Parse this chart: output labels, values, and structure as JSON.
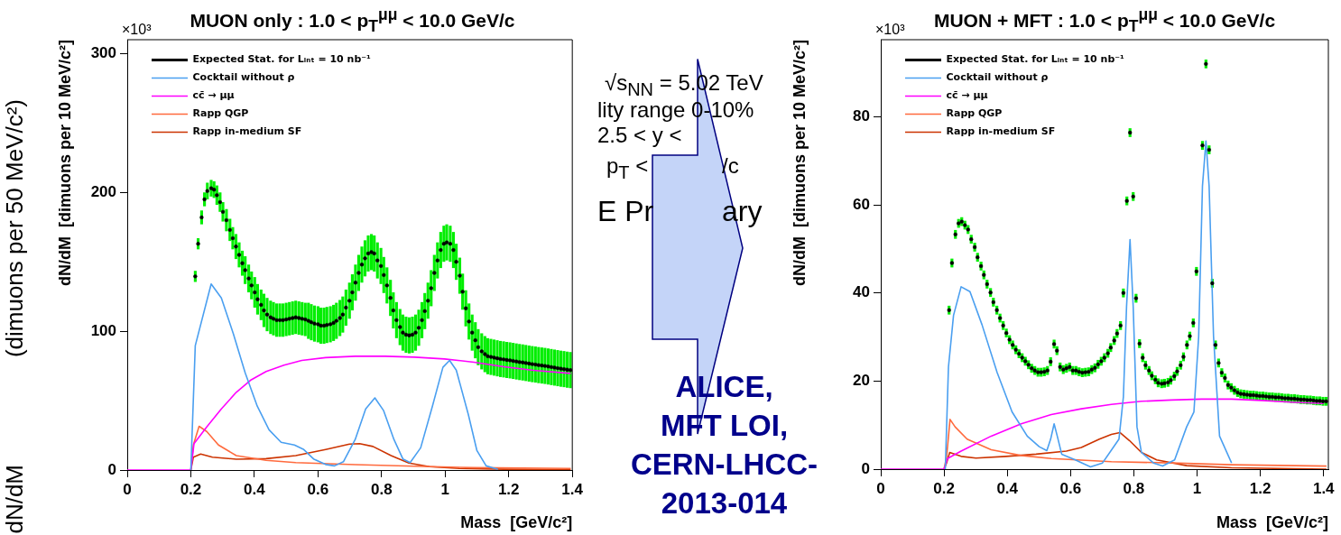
{
  "chart_data": [
    {
      "type": "line",
      "title": "MUON only : 1.0 < p$_{T}$$^{μμ}$ < 10.0 GeV/c",
      "xlabel": "Mass  [GeV/c²]",
      "ylabel": "dN/dM  [dimuons per 10 MeV/c²]",
      "xlim": [
        0,
        1.4
      ],
      "xticks": [
        0,
        0.2,
        0.4,
        0.6,
        0.8,
        1,
        1.2,
        1.4
      ],
      "ylim": [
        0,
        310
      ],
      "yticks": [
        0,
        100,
        200,
        300
      ],
      "legend": "top left",
      "annotations": [
        "×10³"
      ],
      "series": [
        {
          "name": "Expected Stat. for Lᵢₙₜ = 10 nb⁻¹",
          "type": "scatter",
          "marker": "circle",
          "color": "#000000",
          "x": [
            0.214,
            0.223,
            0.234,
            0.243,
            0.252,
            0.264,
            0.273,
            0.282,
            0.292,
            0.301,
            0.312,
            0.323,
            0.332,
            0.342,
            0.352,
            0.362,
            0.371,
            0.382,
            0.391,
            0.401,
            0.41,
            0.421,
            0.43,
            0.44,
            0.451,
            0.46,
            0.47,
            0.48,
            0.49,
            0.5,
            0.51,
            0.52,
            0.53,
            0.54,
            0.55,
            0.56,
            0.57,
            0.579,
            0.589,
            0.6,
            0.609,
            0.619,
            0.628,
            0.639,
            0.649,
            0.658,
            0.669,
            0.678,
            0.688,
            0.699,
            0.708,
            0.718,
            0.728,
            0.738,
            0.748,
            0.758,
            0.768,
            0.777,
            0.787,
            0.798,
            0.807,
            0.817,
            0.828,
            0.837,
            0.847,
            0.858,
            0.867,
            0.877,
            0.887,
            0.897,
            0.907,
            0.917,
            0.927,
            0.936,
            0.946,
            0.956,
            0.966,
            0.976,
            0.986,
            0.996,
            1.005,
            1.016,
            1.026,
            1.035,
            1.046,
            1.055,
            1.065,
            1.075,
            1.085,
            1.095,
            1.104,
            1.115,
            1.125,
            1.134,
            1.144,
            1.154,
            1.164,
            1.174,
            1.184,
            1.194,
            1.204,
            1.214,
            1.224,
            1.234,
            1.244,
            1.254,
            1.264,
            1.274,
            1.284,
            1.294,
            1.304,
            1.314,
            1.324,
            1.334,
            1.344,
            1.354,
            1.364,
            1.374,
            1.384,
            1.394
          ],
          "values": [
            139.5,
            163,
            182,
            195,
            201,
            203,
            202,
            198,
            193,
            186,
            180,
            173,
            167,
            161,
            155,
            149,
            144,
            138,
            133,
            128,
            123,
            119,
            115,
            112,
            110,
            109,
            108,
            108,
            108,
            108.5,
            109,
            109.5,
            110,
            109.5,
            109,
            108.5,
            107.5,
            106.5,
            105.5,
            105,
            104,
            104,
            104.5,
            105,
            106,
            107.5,
            109.5,
            112,
            117,
            122,
            128,
            135,
            142,
            148,
            152.5,
            156,
            157,
            156,
            151,
            147,
            140.5,
            133,
            124,
            115,
            108,
            103,
            99,
            97.5,
            97,
            97.5,
            99,
            102.5,
            108,
            114.5,
            122,
            131,
            142,
            151,
            158.5,
            163,
            164,
            163,
            158.5,
            150,
            140,
            128.5,
            116.5,
            107,
            99,
            93.5,
            88.5,
            85.5,
            83.5,
            82,
            81.5,
            81,
            80.5,
            80,
            79.7,
            79.3,
            79,
            78.6,
            78.2,
            77.8,
            77.5,
            77.1,
            76.7,
            76.3,
            76,
            75.6,
            75.3,
            75,
            74.6,
            74.2,
            73.8,
            73.4,
            73,
            72.7,
            72.3,
            72
          ],
          "errors": [
            4,
            4,
            5,
            5,
            6,
            6,
            6,
            7,
            7,
            7,
            8,
            8,
            8,
            9,
            9,
            9,
            10,
            10,
            10,
            11,
            11,
            11,
            12,
            12,
            12,
            12,
            12,
            12,
            12,
            12,
            12,
            12,
            12,
            12,
            12,
            12,
            13,
            13,
            13,
            13,
            13,
            13,
            13,
            13,
            13,
            13,
            13,
            13,
            13,
            13,
            13,
            13,
            13,
            13,
            13,
            13,
            13,
            13,
            13,
            13,
            13,
            13,
            13,
            13,
            13,
            13,
            13,
            13,
            13,
            13,
            13,
            13,
            13,
            13,
            13,
            13,
            13,
            13,
            13,
            13,
            13,
            13,
            13,
            13,
            13,
            13,
            13,
            13,
            13,
            13,
            13,
            13,
            13,
            13,
            13,
            13,
            13,
            13,
            13,
            13,
            13,
            13,
            13,
            13,
            13,
            13,
            13,
            13,
            13,
            13,
            13,
            13,
            13,
            13,
            13,
            13,
            13,
            13,
            13,
            13
          ]
        },
        {
          "name": "Cocktail without ρ",
          "type": "line",
          "color": "#4a9ff0",
          "x": [
            0.2,
            0.214,
            0.264,
            0.296,
            0.334,
            0.371,
            0.409,
            0.446,
            0.484,
            0.526,
            0.554,
            0.586,
            0.624,
            0.652,
            0.68,
            0.717,
            0.75,
            0.779,
            0.806,
            0.839,
            0.867,
            0.89,
            0.923,
            0.96,
            0.993,
            1.014,
            1.035,
            1.073,
            1.1,
            1.129,
            1.166
          ],
          "values": [
            0,
            89.6,
            134,
            124,
            98,
            70,
            46,
            29,
            20,
            18,
            15,
            8,
            4,
            3,
            6,
            22,
            44,
            52,
            43,
            22,
            8,
            5.4,
            16,
            46,
            74,
            79,
            72,
            40,
            14,
            3,
            0.5
          ]
        },
        {
          "name": "cc̄ → μμ",
          "type": "line",
          "color": "#ff00ff",
          "x": [
            0,
            0.2,
            0.21,
            0.25,
            0.296,
            0.343,
            0.39,
            0.437,
            0.493,
            0.549,
            0.624,
            0.717,
            0.811,
            0.904,
            0.998,
            1.091,
            1.185,
            1.278,
            1.395
          ],
          "values": [
            0,
            0,
            19,
            31,
            44,
            56,
            65,
            71,
            75.5,
            79,
            81,
            82,
            82,
            81.3,
            80,
            77.7,
            74.4,
            71.8,
            69.6
          ]
        },
        {
          "name": "Rapp QGP",
          "type": "line",
          "color": "#ff6a3d",
          "x": [
            0.2,
            0.208,
            0.226,
            0.25,
            0.287,
            0.343,
            0.437,
            0.53,
            0.717,
            0.904,
            1.091,
            1.395
          ],
          "values": [
            0,
            18,
            31.5,
            27.8,
            18,
            10.4,
            7,
            5.4,
            3.9,
            2.8,
            1.7,
            1.1
          ]
        },
        {
          "name": "Rapp in-medium SF",
          "type": "line",
          "color": "#cc3300",
          "x": [
            0.2,
            0.208,
            0.231,
            0.268,
            0.343,
            0.437,
            0.53,
            0.624,
            0.699,
            0.731,
            0.773,
            0.83,
            0.886,
            0.951,
            1.045,
            1.185,
            1.395
          ],
          "values": [
            0,
            9.3,
            11.5,
            9.3,
            7.8,
            8.2,
            10.4,
            14.8,
            18.7,
            19,
            17,
            10.4,
            5,
            2.4,
            1.1,
            0.6,
            0.2
          ]
        }
      ]
    },
    {
      "type": "other",
      "annotations": [
        "√s$_{NN}$ = 5.02 TeV",
        "lity range 0-10%",
        "2.5 < y <",
        "p$_{T}$ <",
        "/c",
        "E Pr",
        "ary",
        "ALICE,",
        "MFT LOI,",
        "CERN-LHCC-2013-014",
        "(dimuons per 50 MeV/c²)",
        "dN/dM"
      ]
    },
    {
      "type": "line",
      "title": "MUON + MFT : 1.0 < p$_{T}$$^{μμ}$ < 10.0 GeV/c",
      "xlabel": "Mass  [GeV/c²]",
      "ylabel": "dN/dM  [dimuons per 10 MeV/c²]",
      "xlim": [
        0,
        1.415
      ],
      "xticks": [
        0,
        0.2,
        0.4,
        0.6,
        0.8,
        1,
        1.2,
        1.4
      ],
      "ylim": [
        0,
        97.5
      ],
      "yticks": [
        0,
        20,
        40,
        60,
        80
      ],
      "legend": "top left",
      "annotations": [
        "×10³"
      ],
      "series": [
        {
          "name": "Expected Stat. for Lᵢₙₜ = 10 nb⁻¹",
          "type": "scatter",
          "marker": "circle",
          "color": "#000000",
          "x": [
            0.216,
            0.225,
            0.236,
            0.246,
            0.256,
            0.266,
            0.276,
            0.286,
            0.297,
            0.306,
            0.317,
            0.326,
            0.336,
            0.347,
            0.356,
            0.367,
            0.377,
            0.387,
            0.397,
            0.407,
            0.417,
            0.427,
            0.437,
            0.447,
            0.457,
            0.467,
            0.477,
            0.487,
            0.497,
            0.507,
            0.517,
            0.527,
            0.537,
            0.548,
            0.557,
            0.567,
            0.577,
            0.587,
            0.597,
            0.607,
            0.617,
            0.627,
            0.637,
            0.647,
            0.657,
            0.667,
            0.677,
            0.687,
            0.697,
            0.707,
            0.718,
            0.727,
            0.738,
            0.747,
            0.758,
            0.767,
            0.778,
            0.788,
            0.798,
            0.807,
            0.818,
            0.828,
            0.837,
            0.848,
            0.857,
            0.868,
            0.877,
            0.888,
            0.897,
            0.908,
            0.917,
            0.928,
            0.937,
            0.948,
            0.957,
            0.968,
            0.977,
            0.988,
            0.998,
            1.017,
            1.028,
            1.038,
            1.048,
            1.058,
            1.068,
            1.078,
            1.088,
            1.098,
            1.108,
            1.118,
            1.128,
            1.138,
            1.148,
            1.158,
            1.168,
            1.178,
            1.188,
            1.198,
            1.208,
            1.218,
            1.228,
            1.238,
            1.248,
            1.258,
            1.268,
            1.278,
            1.288,
            1.298,
            1.308,
            1.318,
            1.328,
            1.338,
            1.348,
            1.358,
            1.368,
            1.378,
            1.388,
            1.398,
            1.408
          ],
          "values": [
            36.1,
            46.8,
            53.3,
            55.8,
            56.2,
            55.4,
            54.4,
            52.2,
            50.4,
            48.1,
            46.1,
            44.1,
            42,
            40.1,
            37.9,
            36.1,
            34.3,
            32.6,
            30.9,
            29.4,
            28.2,
            27.1,
            26.2,
            25.3,
            24.5,
            23.7,
            22.9,
            22.4,
            22,
            22,
            22.1,
            22.4,
            24.4,
            28.4,
            26.9,
            23.2,
            22.6,
            22.9,
            23.2,
            22.4,
            22.4,
            22.1,
            21.9,
            22,
            22.1,
            22.6,
            23,
            23.8,
            24.5,
            25.3,
            26.3,
            27.6,
            29.2,
            30.8,
            32.6,
            40,
            60.9,
            76.4,
            61.9,
            38.8,
            28.5,
            25.3,
            23.6,
            22.4,
            21.2,
            20.3,
            19.6,
            19.4,
            19.5,
            19.7,
            20.2,
            21.1,
            22.2,
            23.6,
            25.5,
            28.2,
            30.2,
            33.2,
            44.9,
            73.5,
            92,
            72.5,
            42.2,
            28.2,
            24.1,
            21.9,
            20.7,
            19.1,
            18.5,
            17.9,
            17.4,
            17.1,
            17,
            16.9,
            16.8,
            16.8,
            16.7,
            16.6,
            16.6,
            16.5,
            16.4,
            16.4,
            16.3,
            16.3,
            16.2,
            16.1,
            16.1,
            16,
            16,
            15.9,
            15.8,
            15.8,
            15.7,
            15.7,
            15.6,
            15.5,
            15.5,
            15.4,
            15.4
          ],
          "errors": [
            1,
            1,
            1,
            1,
            1,
            1,
            1,
            1,
            1,
            1,
            1,
            1,
            1,
            1,
            1,
            1,
            1,
            1,
            1,
            1,
            1,
            1,
            1,
            1,
            1,
            1,
            1,
            1,
            1,
            1,
            1,
            1,
            1,
            1,
            1,
            1,
            1,
            1,
            1,
            1,
            1,
            1,
            1,
            1,
            1,
            1,
            1,
            1,
            1,
            1,
            1,
            1,
            1,
            1,
            1,
            1,
            1,
            1,
            1,
            1,
            1,
            1,
            1,
            1,
            1,
            1,
            1,
            1,
            1,
            1,
            1,
            1,
            1,
            1,
            1,
            1,
            1,
            1,
            1,
            1,
            1,
            1,
            1,
            1,
            1,
            1,
            1,
            1,
            1,
            1,
            1,
            1,
            1,
            1,
            1,
            1,
            1,
            1,
            1,
            1,
            1,
            1,
            1,
            1,
            1,
            1,
            1,
            1,
            1,
            1,
            1,
            1,
            1,
            1,
            1,
            1,
            1,
            1,
            1
          ]
        },
        {
          "name": "Cocktail without ρ",
          "type": "line",
          "color": "#4a9ff0",
          "x": [
            0.204,
            0.214,
            0.23,
            0.254,
            0.282,
            0.32,
            0.368,
            0.415,
            0.463,
            0.501,
            0.525,
            0.537,
            0.548,
            0.558,
            0.572,
            0.615,
            0.663,
            0.701,
            0.753,
            0.767,
            0.777,
            0.788,
            0.798,
            0.81,
            0.824,
            0.862,
            0.891,
            0.929,
            0.967,
            0.99,
            1.005,
            1.017,
            1.028,
            1.038,
            1.052,
            1.071,
            1.109
          ],
          "values": [
            0,
            23.2,
            34.9,
            41.4,
            40.3,
            32.8,
            21.9,
            13,
            7.5,
            5.1,
            4.2,
            6.8,
            10.3,
            7.5,
            3.4,
            2.1,
            0.5,
            1.4,
            6.8,
            16.4,
            36.9,
            52.1,
            36.9,
            9.6,
            3.8,
            1.4,
            0.7,
            2.1,
            9.6,
            13,
            30.1,
            64.3,
            74.5,
            64.3,
            30.1,
            7.5,
            1.4
          ]
        },
        {
          "name": "cc̄ → μμ",
          "type": "line",
          "color": "#ff00ff",
          "x": [
            0,
            0.2,
            0.211,
            0.254,
            0.349,
            0.444,
            0.539,
            0.634,
            0.729,
            0.824,
            0.919,
            1.014,
            1.109,
            1.204,
            1.299,
            1.4
          ],
          "values": [
            0,
            0,
            2.4,
            4.1,
            7.5,
            10.3,
            12.4,
            13.7,
            14.7,
            15.4,
            15.7,
            15.9,
            15.9,
            15.6,
            15.2,
            14.9
          ]
        },
        {
          "name": "Rapp QGP",
          "type": "line",
          "color": "#ff6a3d",
          "x": [
            0.2,
            0.208,
            0.219,
            0.235,
            0.273,
            0.349,
            0.444,
            0.539,
            0.729,
            0.919,
            1.109,
            1.409
          ],
          "values": [
            0,
            2.7,
            11.3,
            9.6,
            6.8,
            4.4,
            3.1,
            2.4,
            1.7,
            1.4,
            1,
            0.7
          ]
        },
        {
          "name": "Rapp in-medium SF",
          "type": "line",
          "color": "#cc3300",
          "x": [
            0.2,
            0.208,
            0.218,
            0.254,
            0.301,
            0.396,
            0.491,
            0.587,
            0.634,
            0.691,
            0.729,
            0.756,
            0.786,
            0.824,
            0.872,
            0.967,
            1.109,
            1.409
          ],
          "values": [
            0,
            1.4,
            3.8,
            2.9,
            2.5,
            2.9,
            3.4,
            4.1,
            4.9,
            6.8,
            7.9,
            8.3,
            6.5,
            3.8,
            2.1,
            0.8,
            0.3,
            0
          ]
        }
      ]
    }
  ]
}
